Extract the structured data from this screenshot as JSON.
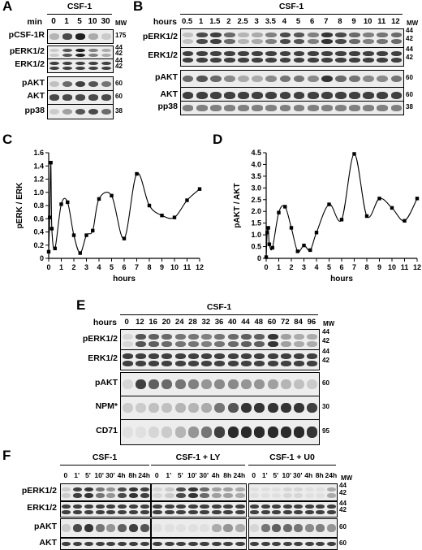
{
  "panels": {
    "A": "A",
    "B": "B",
    "C": "C",
    "D": "D",
    "E": "E",
    "F": "F"
  },
  "A": {
    "treatment": "CSF-1",
    "unit": "min",
    "lanes": [
      "0",
      "1",
      "5",
      "10",
      "30"
    ],
    "mw_header": "MW",
    "rows": [
      {
        "label": "pCSF-1R",
        "mw": [
          "175"
        ],
        "intensities": [
          0.25,
          0.75,
          0.95,
          0.3,
          0.15
        ]
      },
      {
        "label": "pERK1/2",
        "mw": [
          "44",
          "42"
        ],
        "intensities": [
          0.15,
          0.7,
          0.95,
          0.5,
          0.3
        ]
      },
      {
        "label": "ERK1/2",
        "mw": [
          "44",
          "42"
        ],
        "intensities": [
          0.8,
          0.8,
          0.8,
          0.8,
          0.8
        ]
      },
      {
        "label": "pAKT",
        "mw": [
          "60"
        ],
        "intensities": [
          0.2,
          0.6,
          0.8,
          0.7,
          0.55
        ]
      },
      {
        "label": "AKT",
        "mw": [
          "60"
        ],
        "intensities": [
          0.75,
          0.75,
          0.75,
          0.75,
          0.75
        ]
      },
      {
        "label": "pp38",
        "mw": [
          "38"
        ],
        "intensities": [
          0.15,
          0.35,
          0.7,
          0.75,
          0.6
        ]
      }
    ]
  },
  "B": {
    "treatment": "CSF-1",
    "unit": "hours",
    "lanes": [
      "0.5",
      "1",
      "1.5",
      "2",
      "2.5",
      "3",
      "3.5",
      "4",
      "5",
      "6",
      "7",
      "8",
      "9",
      "10",
      "11",
      "12"
    ],
    "mw_header": "MW",
    "rows": [
      {
        "label": "pERK1/2",
        "mw": [
          "44",
          "42"
        ],
        "intensities": [
          0.2,
          0.75,
          0.8,
          0.6,
          0.25,
          0.3,
          0.5,
          0.75,
          0.7,
          0.5,
          0.85,
          0.75,
          0.6,
          0.5,
          0.55,
          0.6
        ]
      },
      {
        "label": "ERK1/2",
        "mw": [
          "44",
          "42"
        ],
        "intensities": [
          0.8,
          0.8,
          0.8,
          0.8,
          0.8,
          0.8,
          0.8,
          0.8,
          0.8,
          0.8,
          0.8,
          0.8,
          0.8,
          0.8,
          0.8,
          0.8
        ]
      },
      {
        "label": "pAKT",
        "mw": [
          "60"
        ],
        "intensities": [
          0.6,
          0.7,
          0.6,
          0.45,
          0.3,
          0.3,
          0.45,
          0.55,
          0.55,
          0.45,
          0.85,
          0.6,
          0.55,
          0.45,
          0.45,
          0.55
        ]
      },
      {
        "label": "AKT",
        "mw": [
          "60"
        ],
        "intensities": [
          0.8,
          0.8,
          0.8,
          0.8,
          0.8,
          0.8,
          0.8,
          0.8,
          0.8,
          0.8,
          0.8,
          0.8,
          0.8,
          0.8,
          0.8,
          0.8
        ]
      },
      {
        "label": "pp38",
        "mw": [
          "38"
        ],
        "intensities": [
          0.5,
          0.5,
          0.5,
          0.5,
          0.5,
          0.5,
          0.5,
          0.5,
          0.5,
          0.5,
          0.5,
          0.5,
          0.5,
          0.5,
          0.5,
          0.5
        ]
      }
    ]
  },
  "E": {
    "treatment": "CSF-1",
    "unit": "hours",
    "lanes": [
      "0",
      "12",
      "16",
      "20",
      "24",
      "28",
      "32",
      "36",
      "40",
      "44",
      "48",
      "60",
      "72",
      "84",
      "96"
    ],
    "mw_header": "MW",
    "rows": [
      {
        "label": "pERK1/2",
        "mw": [
          "44",
          "42"
        ],
        "intensities": [
          0.1,
          0.7,
          0.65,
          0.6,
          0.55,
          0.55,
          0.5,
          0.55,
          0.6,
          0.65,
          0.65,
          0.85,
          0.35,
          0.3,
          0.3
        ]
      },
      {
        "label": "ERK1/2",
        "mw": [
          "44",
          "42"
        ],
        "intensities": [
          0.8,
          0.8,
          0.8,
          0.8,
          0.8,
          0.8,
          0.8,
          0.8,
          0.8,
          0.8,
          0.8,
          0.8,
          0.8,
          0.8,
          0.8
        ]
      },
      {
        "label": "pAKT",
        "mw": [
          "60"
        ],
        "intensities": [
          0.1,
          0.8,
          0.65,
          0.6,
          0.55,
          0.5,
          0.4,
          0.45,
          0.45,
          0.4,
          0.4,
          0.35,
          0.25,
          0.2,
          0.15
        ]
      },
      {
        "label": "NPM*",
        "mw": [
          "30"
        ],
        "intensities": [
          0.15,
          0.15,
          0.2,
          0.2,
          0.25,
          0.25,
          0.3,
          0.55,
          0.7,
          0.85,
          0.85,
          0.85,
          0.85,
          0.85,
          0.8
        ]
      },
      {
        "label": "CD71",
        "mw": [
          "95"
        ],
        "intensities": [
          0.05,
          0.05,
          0.1,
          0.15,
          0.25,
          0.4,
          0.55,
          0.8,
          0.9,
          0.9,
          0.9,
          0.9,
          0.9,
          0.9,
          0.85
        ]
      }
    ]
  },
  "F": {
    "mw_header": "MW",
    "groups": [
      {
        "treatment": "CSF-1",
        "lanes": [
          "0",
          "1'",
          "5'",
          "10'",
          "30'",
          "4h",
          "8h",
          "24h"
        ]
      },
      {
        "treatment": "CSF-1 + LY",
        "lanes": [
          "0",
          "1'",
          "5'",
          "10'",
          "30'",
          "4h",
          "8h",
          "24h"
        ]
      },
      {
        "treatment": "CSF-1 + U0",
        "lanes": [
          "0",
          "1'",
          "5'",
          "10'",
          "30'",
          "4h",
          "8h",
          "24h"
        ]
      }
    ],
    "rows": [
      {
        "label": "pERK1/2",
        "mw": [
          "44",
          "42"
        ],
        "intensities": [
          [
            0.15,
            0.8,
            0.85,
            0.55,
            0.4,
            0.75,
            0.85,
            0.8
          ],
          [
            0.1,
            0.15,
            0.75,
            0.85,
            0.6,
            0.35,
            0.35,
            0.3
          ],
          [
            0.05,
            0.05,
            0.05,
            0.1,
            0.1,
            0.05,
            0.05,
            0.3
          ]
        ]
      },
      {
        "label": "ERK1/2",
        "mw": [
          "44",
          "42"
        ],
        "intensities": [
          [
            0.8,
            0.8,
            0.8,
            0.8,
            0.8,
            0.8,
            0.8,
            0.8
          ],
          [
            0.8,
            0.8,
            0.8,
            0.8,
            0.8,
            0.8,
            0.8,
            0.8
          ],
          [
            0.8,
            0.8,
            0.8,
            0.8,
            0.8,
            0.8,
            0.8,
            0.8
          ]
        ]
      },
      {
        "label": "pAKT",
        "mw": [
          "60"
        ],
        "intensities": [
          [
            0.15,
            0.75,
            0.85,
            0.55,
            0.4,
            0.65,
            0.8,
            0.7
          ],
          [
            0.05,
            0.05,
            0.05,
            0.05,
            0.05,
            0.3,
            0.4,
            0.3
          ],
          [
            0.1,
            0.55,
            0.65,
            0.6,
            0.55,
            0.45,
            0.5,
            0.4
          ]
        ]
      },
      {
        "label": "AKT",
        "mw": [
          "60"
        ],
        "intensities": [
          [
            0.8,
            0.8,
            0.8,
            0.8,
            0.8,
            0.8,
            0.8,
            0.8
          ],
          [
            0.8,
            0.8,
            0.8,
            0.8,
            0.8,
            0.8,
            0.8,
            0.8
          ],
          [
            0.8,
            0.8,
            0.8,
            0.8,
            0.8,
            0.8,
            0.8,
            0.8
          ]
        ]
      }
    ]
  },
  "chart_data": [
    {
      "type": "line",
      "panel": "C",
      "xlabel": "hours",
      "ylabel": "pERK / ERK",
      "xlim": [
        0,
        12
      ],
      "ylim": [
        0,
        1.6
      ],
      "xticks": [
        "0",
        "1",
        "2",
        "3",
        "4",
        "5",
        "6",
        "7",
        "8",
        "9",
        "10",
        "11",
        "12"
      ],
      "yticks": [
        "0",
        "0.2",
        "0.4",
        "0.6",
        "0.8",
        "1.0",
        "1.2",
        "1.4",
        "1.6"
      ],
      "x": [
        0,
        0.08,
        0.17,
        0.25,
        0.5,
        1,
        1.5,
        2,
        2.5,
        3,
        3.5,
        4,
        5,
        6,
        7,
        8,
        9,
        10,
        11,
        12
      ],
      "y": [
        0.1,
        0.62,
        1.45,
        0.45,
        0.15,
        0.82,
        0.85,
        0.35,
        0.08,
        0.35,
        0.42,
        0.9,
        0.95,
        0.3,
        1.28,
        0.8,
        0.65,
        0.62,
        0.88,
        1.05
      ]
    },
    {
      "type": "line",
      "panel": "D",
      "xlabel": "hours",
      "ylabel": "pAKT / AKT",
      "xlim": [
        0,
        12
      ],
      "ylim": [
        0,
        4.5
      ],
      "xticks": [
        "0",
        "1",
        "2",
        "3",
        "4",
        "5",
        "6",
        "7",
        "8",
        "9",
        "10",
        "11",
        "12"
      ],
      "yticks": [
        "0",
        "0.5",
        "1.0",
        "1.5",
        "2.0",
        "2.5",
        "3.0",
        "3.5",
        "4.0",
        "4.5"
      ],
      "x": [
        0,
        0.08,
        0.17,
        0.25,
        0.5,
        1,
        1.5,
        2,
        2.5,
        3,
        3.5,
        4,
        5,
        6,
        7,
        8,
        9,
        10,
        11,
        12
      ],
      "y": [
        0.05,
        1.1,
        1.3,
        0.6,
        0.45,
        1.95,
        2.2,
        1.3,
        0.3,
        0.55,
        0.35,
        1.1,
        2.3,
        1.65,
        4.45,
        1.8,
        2.55,
        2.15,
        1.6,
        2.55
      ]
    }
  ]
}
